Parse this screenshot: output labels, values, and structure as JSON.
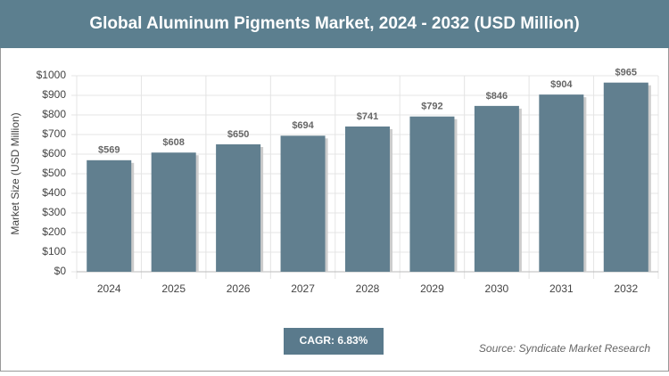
{
  "chart_data": {
    "type": "bar",
    "title": "Global Aluminum Pigments Market, 2024 - 2032 (USD Million)",
    "y_label": "Market Size (USD Million)",
    "categories": [
      "2024",
      "2025",
      "2026",
      "2027",
      "2028",
      "2029",
      "2030",
      "2031",
      "2032"
    ],
    "values": [
      569,
      608,
      650,
      694,
      741,
      792,
      846,
      904,
      965
    ],
    "value_labels": [
      "$569",
      "$608",
      "$650",
      "$694",
      "$741",
      "$792",
      "$846",
      "$904",
      "$965"
    ],
    "color": "#617f8f",
    "ylim": [
      0,
      1000
    ],
    "yticks": [
      {
        "value": 0,
        "label": "$0"
      },
      {
        "value": 100,
        "label": "$100"
      },
      {
        "value": 200,
        "label": "$200"
      },
      {
        "value": 300,
        "label": "$300"
      },
      {
        "value": 400,
        "label": "$400"
      },
      {
        "value": 500,
        "label": "$500"
      },
      {
        "value": 600,
        "label": "$600"
      },
      {
        "value": 700,
        "label": "$700"
      },
      {
        "value": 800,
        "label": "$800"
      },
      {
        "value": 900,
        "label": "$900"
      },
      {
        "value": 1000,
        "label": "$1000"
      }
    ],
    "grid": true,
    "cagr": "CAGR: 6.83%",
    "source": "Source: Syndicate Market Research"
  }
}
